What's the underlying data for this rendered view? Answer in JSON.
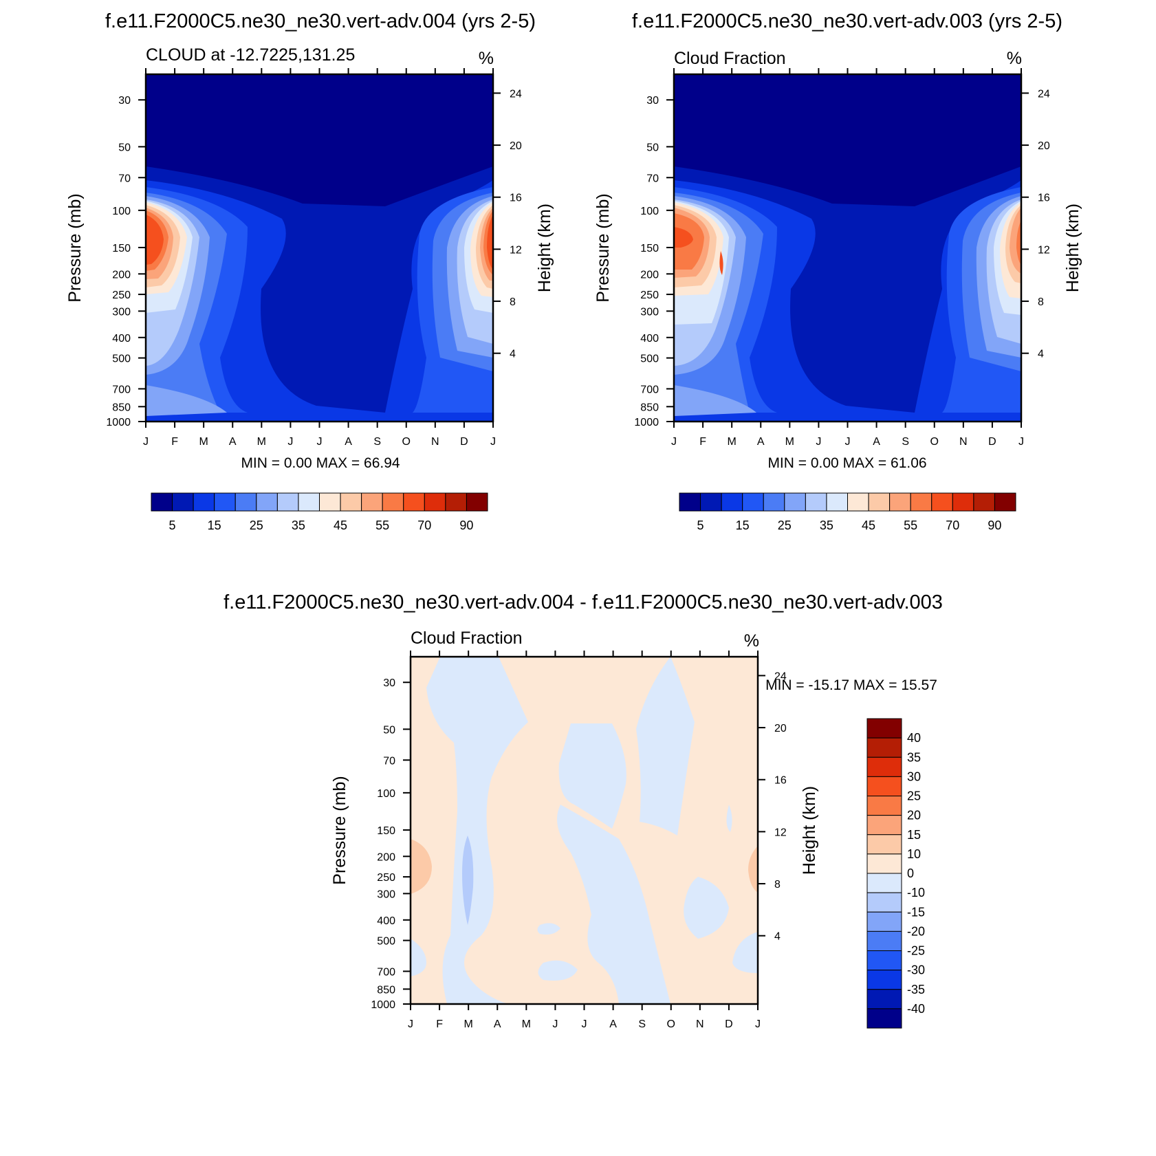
{
  "chart_data": [
    {
      "type": "heatmap",
      "title": "f.e11.F2000C5.ne30_ne30.vert-adv.004 (yrs 2-5)",
      "left_subtitle": "CLOUD at -12.7225,131.25",
      "right_subtitle": "%",
      "ylabel": "Pressure (mb)",
      "y2label": "Height (km)",
      "x_ticks": [
        "J",
        "F",
        "M",
        "A",
        "M",
        "J",
        "J",
        "A",
        "S",
        "O",
        "N",
        "D",
        "J"
      ],
      "y_ticks": [
        "30",
        "50",
        "70",
        "100",
        "150",
        "200",
        "250",
        "300",
        "400",
        "500",
        "700",
        "850",
        "1000"
      ],
      "y2_ticks": [
        "24",
        "20",
        "16",
        "12",
        "8",
        "4"
      ],
      "stats": "MIN =   0.00 MAX =  66.94",
      "min": 0.0,
      "max": 66.94,
      "colorbar_labels": [
        "5",
        "15",
        "25",
        "35",
        "45",
        "55",
        "70",
        "90"
      ],
      "colorbar_colors": [
        "#00008a",
        "#0019b4",
        "#0a38e6",
        "#2157f5",
        "#4b7cf5",
        "#82a5f8",
        "#b4cbfb",
        "#dbe9fc",
        "#fde8d6",
        "#fccaa8",
        "#fba47a",
        "#f97a45",
        "#f5501e",
        "#de2d0a",
        "#b41e05",
        "#820000"
      ]
    },
    {
      "type": "heatmap",
      "title": "f.e11.F2000C5.ne30_ne30.vert-adv.003 (yrs 2-5)",
      "left_subtitle": "Cloud Fraction",
      "right_subtitle": "%",
      "ylabel": "Pressure (mb)",
      "y2label": "Height (km)",
      "x_ticks": [
        "J",
        "F",
        "M",
        "A",
        "M",
        "J",
        "J",
        "A",
        "S",
        "O",
        "N",
        "D",
        "J"
      ],
      "y_ticks": [
        "30",
        "50",
        "70",
        "100",
        "150",
        "200",
        "250",
        "300",
        "400",
        "500",
        "700",
        "850",
        "1000"
      ],
      "y2_ticks": [
        "24",
        "20",
        "16",
        "12",
        "8",
        "4"
      ],
      "stats": "MIN =   0.00 MAX =  61.06",
      "min": 0.0,
      "max": 61.06,
      "colorbar_labels": [
        "5",
        "15",
        "25",
        "35",
        "45",
        "55",
        "70",
        "90"
      ],
      "colorbar_colors": [
        "#00008a",
        "#0019b4",
        "#0a38e6",
        "#2157f5",
        "#4b7cf5",
        "#82a5f8",
        "#b4cbfb",
        "#dbe9fc",
        "#fde8d6",
        "#fccaa8",
        "#fba47a",
        "#f97a45",
        "#f5501e",
        "#de2d0a",
        "#b41e05",
        "#820000"
      ]
    },
    {
      "type": "heatmap",
      "title": "f.e11.F2000C5.ne30_ne30.vert-adv.004 - f.e11.F2000C5.ne30_ne30.vert-adv.003",
      "left_subtitle": "Cloud Fraction",
      "right_subtitle": "%",
      "ylabel": "Pressure (mb)",
      "y2label": "Height (km)",
      "x_ticks": [
        "J",
        "F",
        "M",
        "A",
        "M",
        "J",
        "J",
        "A",
        "S",
        "O",
        "N",
        "D",
        "J"
      ],
      "y_ticks": [
        "30",
        "50",
        "70",
        "100",
        "150",
        "200",
        "250",
        "300",
        "400",
        "500",
        "700",
        "850",
        "1000"
      ],
      "y2_ticks": [
        "24",
        "20",
        "16",
        "12",
        "8",
        "4"
      ],
      "stats": "MIN = -15.17 MAX =  15.57",
      "min": -15.17,
      "max": 15.57,
      "colorbar_labels": [
        "40",
        "35",
        "30",
        "25",
        "20",
        "15",
        "10",
        "0",
        "-10",
        "-15",
        "-20",
        "-25",
        "-30",
        "-35",
        "-40"
      ],
      "colorbar_colors": [
        "#820000",
        "#b41e05",
        "#de2d0a",
        "#f5501e",
        "#f97a45",
        "#fba47a",
        "#fccaa8",
        "#fde8d6",
        "#dbe9fc",
        "#b4cbfb",
        "#82a5f8",
        "#4b7cf5",
        "#2157f5",
        "#0a38e6",
        "#0019b4",
        "#00008a"
      ]
    }
  ]
}
